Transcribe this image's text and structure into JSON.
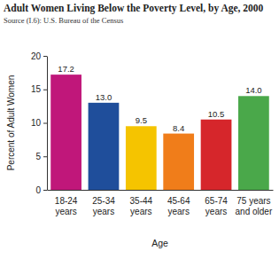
{
  "chart_data": {
    "type": "bar",
    "title": "Adult Women Living Below the Poverty Level, by Age, 2000",
    "subtitle": "Source (I.6): U.S. Bureau of the Census",
    "categories": [
      "18-24 years",
      "25-34 years",
      "35-44 years",
      "45-64 years",
      "65-74 years",
      "75 years and older"
    ],
    "values": [
      17.2,
      13.0,
      9.5,
      8.4,
      10.5,
      14.0
    ],
    "value_labels": [
      "17.2",
      "13.0",
      "9.5",
      "8.4",
      "10.5",
      "14.0"
    ],
    "colors": [
      "#c0177a",
      "#1f4e9b",
      "#f5c400",
      "#f07d1a",
      "#d6262b",
      "#4aa84a"
    ],
    "xlabel": "Age",
    "ylabel": "Percent of Adult Women",
    "ylim": [
      0,
      20
    ],
    "yticks": [
      0,
      5,
      10,
      15,
      20
    ],
    "data_labels": true,
    "grid": false
  }
}
